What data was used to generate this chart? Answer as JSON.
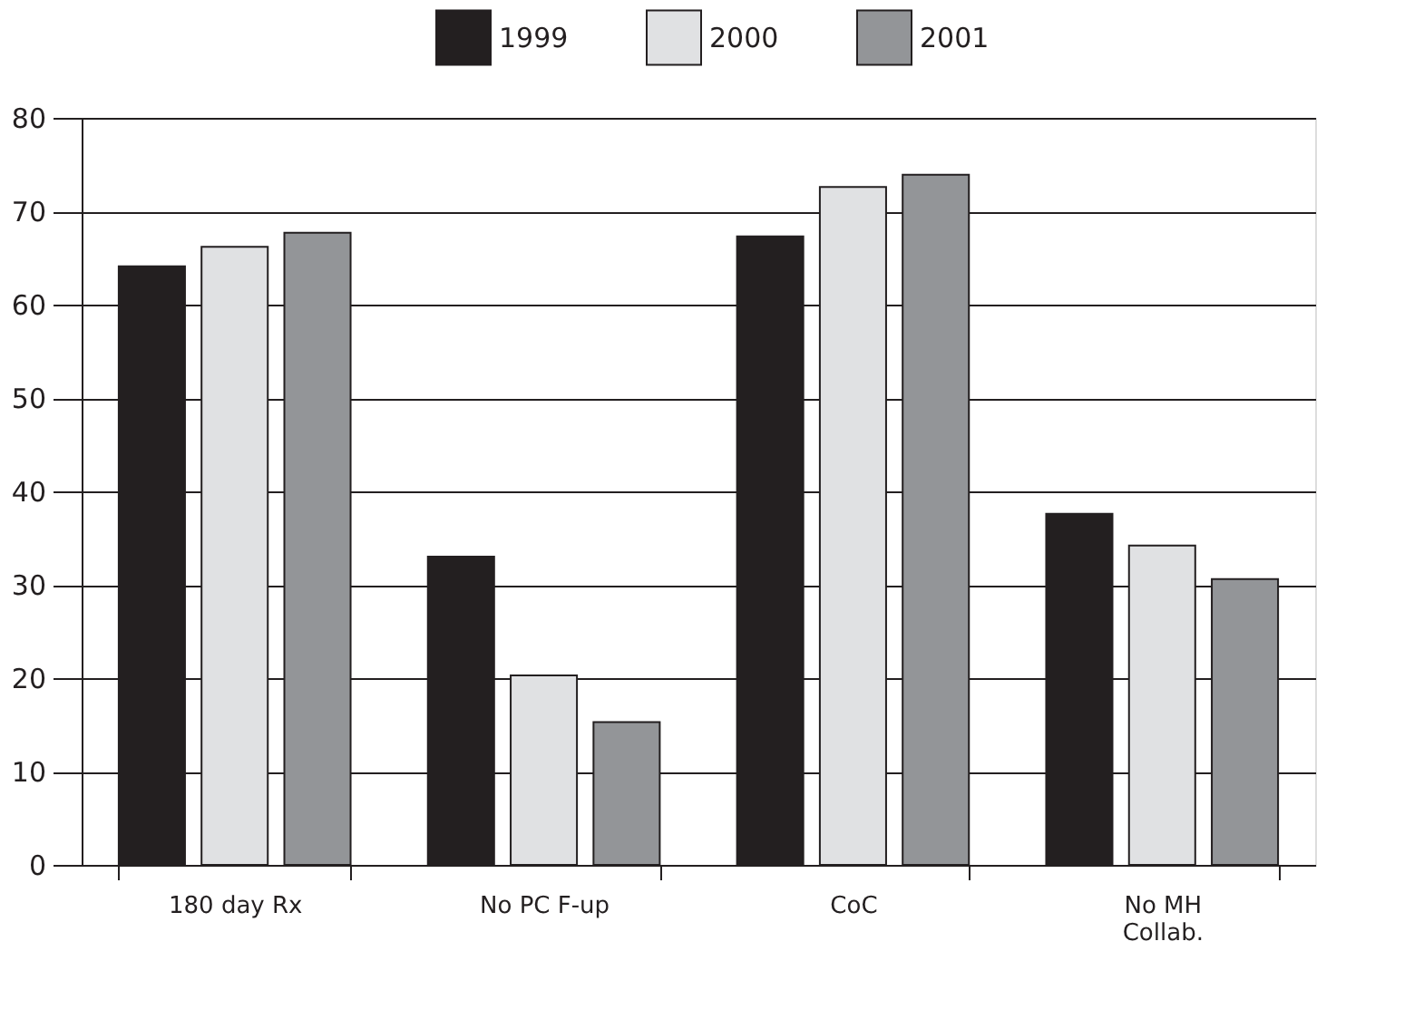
{
  "chart_data": {
    "type": "bar",
    "categories": [
      "180 day Rx",
      "No PC F-up",
      "CoC",
      "No MH\nCollab."
    ],
    "series": [
      {
        "name": "1999",
        "color": "#231f20",
        "values": [
          64.1,
          33.0,
          67.3,
          37.6
        ]
      },
      {
        "name": "2000",
        "color": "#e0e1e3",
        "values": [
          66.2,
          20.3,
          72.6,
          34.2
        ]
      },
      {
        "name": "2001",
        "color": "#939598",
        "values": [
          67.7,
          15.3,
          73.9,
          30.6
        ]
      }
    ],
    "ylim": [
      0,
      80
    ],
    "yticks": [
      0,
      10,
      20,
      30,
      40,
      50,
      60,
      70,
      80
    ],
    "grid": "y",
    "legend": "top"
  }
}
